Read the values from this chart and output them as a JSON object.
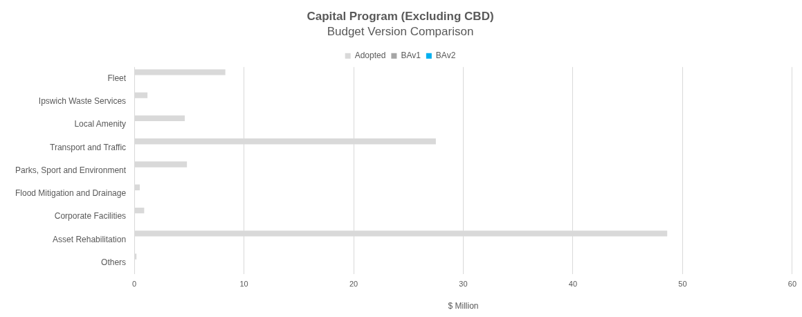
{
  "chart_data": {
    "type": "bar",
    "orientation": "horizontal",
    "title": "Capital Program (Excluding CBD)",
    "subtitle": "Budget Version Comparison",
    "xlabel": "$ Million",
    "categories": [
      "Fleet",
      "Ipswich Waste Services",
      "Local Amenity",
      "Transport and Traffic",
      "Parks, Sport and Environment",
      "Flood Mitigation and Drainage",
      "Corporate Facilities",
      "Asset Rehabilitation",
      "Others"
    ],
    "series": [
      {
        "name": "Adopted",
        "color": "#d9d9d9",
        "values": [
          8.3,
          1.2,
          4.6,
          27.5,
          4.8,
          0.5,
          0.9,
          48.6,
          0.2
        ]
      },
      {
        "name": "BAv1",
        "color": "#a6a6a6",
        "values": [
          null,
          null,
          null,
          null,
          null,
          null,
          null,
          null,
          null
        ]
      },
      {
        "name": "BAv2",
        "color": "#00b0f0",
        "values": [
          null,
          null,
          null,
          null,
          null,
          null,
          null,
          null,
          null
        ]
      }
    ],
    "xlim": [
      0,
      60
    ],
    "xticks": [
      0,
      10,
      20,
      30,
      40,
      50,
      60
    ],
    "grid": "x",
    "legend": "top"
  }
}
